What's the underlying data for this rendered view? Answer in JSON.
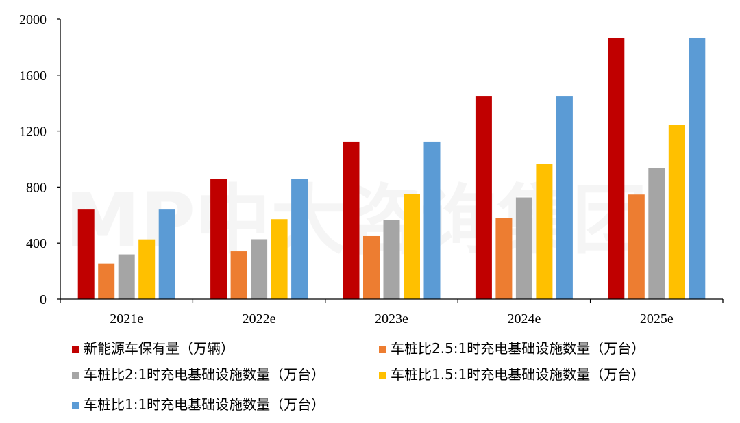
{
  "watermark": "MP中大咨询集团",
  "chart_data": {
    "type": "bar",
    "categories": [
      "2021e",
      "2022e",
      "2023e",
      "2024e",
      "2025e"
    ],
    "ylim": [
      0,
      2000
    ],
    "yticks": [
      0,
      400,
      800,
      1200,
      1600,
      2000
    ],
    "grid": false,
    "legend_position": "bottom",
    "series": [
      {
        "name": "新能源车保有量（万辆）",
        "color": "#C00000",
        "values": [
          640,
          856,
          1125,
          1452,
          1868
        ]
      },
      {
        "name": "车桩比2.5:1时充电基础设施数量（万台）",
        "color": "#ED7D31",
        "values": [
          256,
          342,
          450,
          581,
          747
        ]
      },
      {
        "name": "车桩比2:1时充电基础设施数量（万台）",
        "color": "#A5A5A5",
        "values": [
          320,
          428,
          563,
          726,
          934
        ]
      },
      {
        "name": "车桩比1.5:1时充电基础设施数量（万台）",
        "color": "#FFC000",
        "values": [
          427,
          571,
          750,
          968,
          1245
        ]
      },
      {
        "name": "车桩比1:1时充电基础设施数量（万台）",
        "color": "#5B9BD5",
        "values": [
          640,
          856,
          1125,
          1452,
          1868
        ]
      }
    ]
  }
}
